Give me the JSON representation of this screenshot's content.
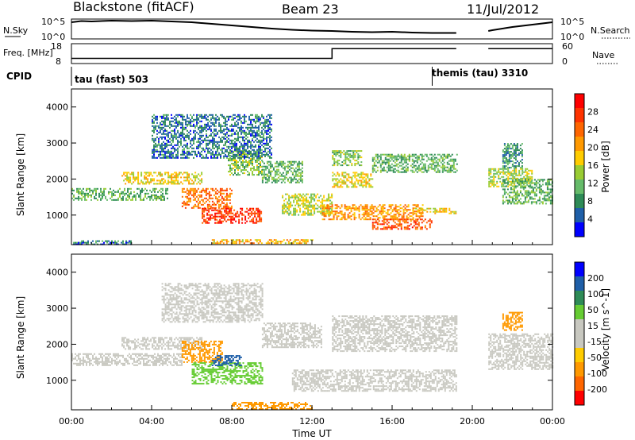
{
  "header": {
    "station": "Blackstone (fitACF)",
    "beam": "Beam 23",
    "date": "11/Jul/2012"
  },
  "colors": {
    "power_scale": [
      "#0000ff",
      "#1f5fa8",
      "#2e8b57",
      "#66bb6a",
      "#99cc33",
      "#ffcc00",
      "#ff9900",
      "#ff6600",
      "#ff3300",
      "#ff0000"
    ],
    "velocity_scale": [
      "#ff0000",
      "#ff6600",
      "#ff9900",
      "#ffcc00",
      "#c8c8c0",
      "#c8c8c0",
      "#66cc33",
      "#2e8b57",
      "#1f5fa8",
      "#0000ff"
    ]
  },
  "chart_data": [
    {
      "type": "line",
      "id": "nsky",
      "ylabel": "N.Sky",
      "right_label": "N.Search",
      "y_ticks": [
        "10^5",
        "10^0"
      ],
      "right_ticks": [
        "10^5",
        "10^0"
      ],
      "x_unit": "hours UT",
      "x": [
        0,
        0.5,
        1,
        2,
        3,
        4,
        5,
        6,
        7,
        8,
        9,
        10,
        11,
        12,
        13,
        14,
        15,
        16,
        17,
        18,
        19.2,
        20.8,
        21,
        22,
        23,
        24
      ],
      "y_log": [
        4.2,
        4.5,
        4.4,
        4.6,
        4.5,
        4.6,
        4.4,
        4.2,
        3.8,
        3.4,
        3.0,
        2.6,
        2.3,
        2.1,
        2.0,
        1.8,
        1.7,
        1.8,
        1.6,
        1.5,
        1.5,
        2.0,
        2.2,
        3.0,
        3.6,
        4.2
      ],
      "gap_hours": [
        19.2,
        20.8
      ],
      "ylim": [
        0,
        5
      ]
    },
    {
      "type": "line",
      "id": "freq",
      "ylabel": "Freq. [MHz]",
      "right_label": "Nave",
      "y_ticks": [
        "18",
        "8"
      ],
      "right_ticks": [
        "60",
        "0"
      ],
      "x": [
        0,
        13,
        13,
        19.2,
        20.8,
        24
      ],
      "y": [
        10.6,
        10.6,
        15.5,
        15.5,
        15.5,
        15.5
      ],
      "gap_hours": [
        19.2,
        20.8
      ],
      "ylim": [
        8,
        18
      ]
    },
    {
      "type": "table",
      "id": "cpid",
      "label": "CPID",
      "segments": [
        {
          "start_hour": 0,
          "text": "tau (fast) 503"
        },
        {
          "start_hour": 18,
          "text": "themis (tau) 3310"
        }
      ]
    },
    {
      "type": "heatmap",
      "id": "power",
      "ylabel": "Slant Range [km]",
      "colorbar_label": "Power [dB]",
      "colorbar_ticks": [
        "28",
        "24",
        "20",
        "16",
        "12",
        "8",
        "4"
      ],
      "y_ticks": [
        "4000",
        "3000",
        "2000",
        "1000"
      ],
      "xlim_hours": [
        0,
        24
      ],
      "ylim_km": [
        180,
        4500
      ],
      "regions": [
        {
          "t0": 0,
          "t1": 4.8,
          "r0": 1400,
          "r1": 1750,
          "value": 10
        },
        {
          "t0": 2.5,
          "t1": 6.5,
          "r0": 1850,
          "r1": 2200,
          "value": 16
        },
        {
          "t0": 5.5,
          "t1": 8,
          "r0": 1200,
          "r1": 1750,
          "value": 22
        },
        {
          "t0": 6.5,
          "t1": 9.5,
          "r0": 800,
          "r1": 1200,
          "value": 26
        },
        {
          "t0": 7.8,
          "t1": 9.5,
          "r0": 2100,
          "r1": 2800,
          "value": 12
        },
        {
          "t0": 9.5,
          "t1": 11.5,
          "r0": 1900,
          "r1": 2500,
          "value": 10
        },
        {
          "t0": 10.5,
          "t1": 13,
          "r0": 1000,
          "r1": 1600,
          "value": 14
        },
        {
          "t0": 12.5,
          "t1": 17.5,
          "r0": 900,
          "r1": 1300,
          "value": 20
        },
        {
          "t0": 15,
          "t1": 18,
          "r0": 600,
          "r1": 900,
          "value": 24
        },
        {
          "t0": 13,
          "t1": 15,
          "r0": 1800,
          "r1": 2200,
          "value": 16
        },
        {
          "t0": 13,
          "t1": 14.5,
          "r0": 2400,
          "r1": 2800,
          "value": 12
        },
        {
          "t0": 15,
          "t1": 19.2,
          "r0": 2200,
          "r1": 2700,
          "value": 10
        },
        {
          "t0": 17,
          "t1": 19.2,
          "r0": 1050,
          "r1": 1200,
          "value": 16
        },
        {
          "t0": 4,
          "t1": 10,
          "r0": 2600,
          "r1": 3800,
          "value": 6
        },
        {
          "t0": 20.8,
          "t1": 23,
          "r0": 1800,
          "r1": 2300,
          "value": 14
        },
        {
          "t0": 21.5,
          "t1": 24,
          "r0": 1300,
          "r1": 2000,
          "value": 10
        },
        {
          "t0": 21.5,
          "t1": 22.5,
          "r0": 2300,
          "r1": 3000,
          "value": 8
        },
        {
          "t0": 7,
          "t1": 12,
          "r0": 200,
          "r1": 330,
          "value": 18
        },
        {
          "t0": 0,
          "t1": 3,
          "r0": 200,
          "r1": 300,
          "value": 6
        }
      ]
    },
    {
      "type": "heatmap",
      "id": "velocity",
      "ylabel": "Slant Range [km]",
      "colorbar_label": "Velocity [m s^-1]",
      "colorbar_ticks": [
        "200",
        "100",
        "50",
        "15",
        "-15",
        "-50",
        "-100",
        "-200"
      ],
      "y_ticks": [
        "4000",
        "3000",
        "2000",
        "1000"
      ],
      "xlabel": "Time UT",
      "x_ticks": [
        "00:00",
        "04:00",
        "08:00",
        "12:00",
        "16:00",
        "20:00",
        "00:00"
      ],
      "xlim_hours": [
        0,
        24
      ],
      "ylim_km": [
        180,
        4500
      ],
      "regions": [
        {
          "t0": 0,
          "t1": 5.5,
          "r0": 1400,
          "r1": 1750,
          "value": 0
        },
        {
          "t0": 2.5,
          "t1": 6.5,
          "r0": 1850,
          "r1": 2200,
          "value": 0
        },
        {
          "t0": 5.5,
          "t1": 7.5,
          "r0": 1500,
          "r1": 2100,
          "value": -80
        },
        {
          "t0": 6,
          "t1": 9.5,
          "r0": 900,
          "r1": 1500,
          "value": 40
        },
        {
          "t0": 7,
          "t1": 8.5,
          "r0": 1400,
          "r1": 1700,
          "value": 150
        },
        {
          "t0": 9.5,
          "t1": 12.5,
          "r0": 1900,
          "r1": 2600,
          "value": 0
        },
        {
          "t0": 11,
          "t1": 19.2,
          "r0": 700,
          "r1": 1300,
          "value": 0
        },
        {
          "t0": 13,
          "t1": 19.2,
          "r0": 1800,
          "r1": 2800,
          "value": 0
        },
        {
          "t0": 4.5,
          "t1": 9.5,
          "r0": 2600,
          "r1": 3700,
          "value": 0
        },
        {
          "t0": 20.8,
          "t1": 24,
          "r0": 1300,
          "r1": 2300,
          "value": 0
        },
        {
          "t0": 21.5,
          "t1": 22.5,
          "r0": 2400,
          "r1": 2900,
          "value": -60
        },
        {
          "t0": 8,
          "t1": 12,
          "r0": 200,
          "r1": 400,
          "value": -60
        }
      ]
    }
  ]
}
